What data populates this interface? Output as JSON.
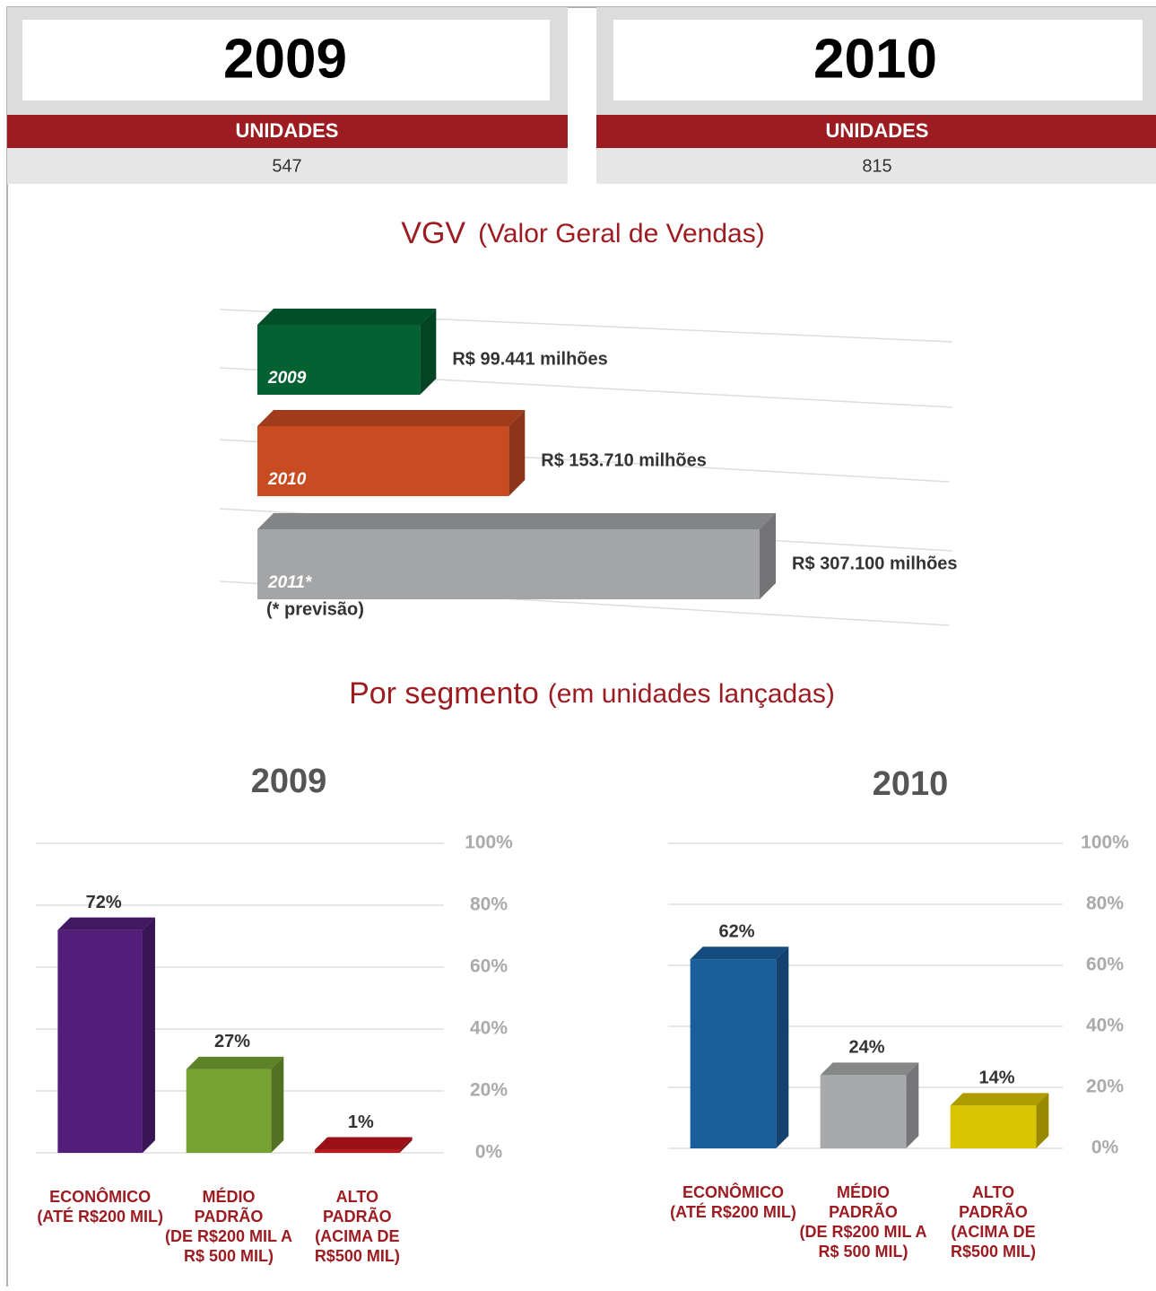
{
  "panels": [
    {
      "year": "2009",
      "label": "UNIDADES",
      "value": 547
    },
    {
      "year": "2010",
      "label": "UNIDADES",
      "value": 815
    }
  ],
  "segment_heading": {
    "title": "Por segmento",
    "subtitle": "(em unidades lançadas)"
  },
  "chart_data": [
    {
      "type": "bar",
      "orientation": "horizontal",
      "title": "VGV",
      "subtitle": "(Valor Geral de Vendas)",
      "categories": [
        "2009",
        "2010",
        "2011*"
      ],
      "values": [
        99.441,
        153.71,
        307.1
      ],
      "value_labels": [
        "R$ 99.441 milhões",
        "R$ 153.710 milhões",
        "R$ 307.100 milhões"
      ],
      "colors": [
        "#036132",
        "#c84b22",
        "#a4a5a7"
      ],
      "note": "(* previsão)"
    },
    {
      "type": "bar",
      "orientation": "vertical",
      "title": "2009",
      "categories": [
        [
          "ECONÔMICO",
          "(ATÉ R$200 MIL)"
        ],
        [
          "MÉDIO",
          "PADRÃO",
          "(DE R$200 MIL A",
          "R$ 500 MIL)"
        ],
        [
          "ALTO",
          "PADRÃO",
          "(ACIMA DE",
          "R$500 MIL)"
        ]
      ],
      "values": [
        72,
        27,
        1
      ],
      "value_labels": [
        "72%",
        "27%",
        "1%"
      ],
      "colors": [
        "#521e7a",
        "#76a232",
        "#c0141c"
      ],
      "ylim": [
        0,
        100
      ],
      "yticks": [
        {
          "value": 0,
          "label": "0%"
        },
        {
          "value": 20,
          "label": "20%"
        },
        {
          "value": 40,
          "label": "40%"
        },
        {
          "value": 60,
          "label": "60%"
        },
        {
          "value": 80,
          "label": "80%"
        },
        {
          "value": 100,
          "label": "100%"
        }
      ],
      "grid": true
    },
    {
      "type": "bar",
      "orientation": "vertical",
      "title": "2010",
      "categories": [
        [
          "ECONÔMICO",
          "(ATÉ R$200 MIL)"
        ],
        [
          "MÉDIO",
          "PADRÃO",
          "(DE R$200 MIL A",
          "R$ 500 MIL)"
        ],
        [
          "ALTO",
          "PADRÃO",
          "(ACIMA DE",
          "R$500 MIL)"
        ]
      ],
      "values": [
        62,
        24,
        14
      ],
      "value_labels": [
        "62%",
        "24%",
        "14%"
      ],
      "colors": [
        "#1a5e9c",
        "#a8a9ab",
        "#d9c400"
      ],
      "ylim": [
        0,
        100
      ],
      "yticks": [
        {
          "value": 0,
          "label": "0%"
        },
        {
          "value": 20,
          "label": "20%"
        },
        {
          "value": 40,
          "label": "40%"
        },
        {
          "value": 60,
          "label": "60%"
        },
        {
          "value": 80,
          "label": "80%"
        },
        {
          "value": 100,
          "label": "100%"
        }
      ],
      "grid": true
    }
  ]
}
